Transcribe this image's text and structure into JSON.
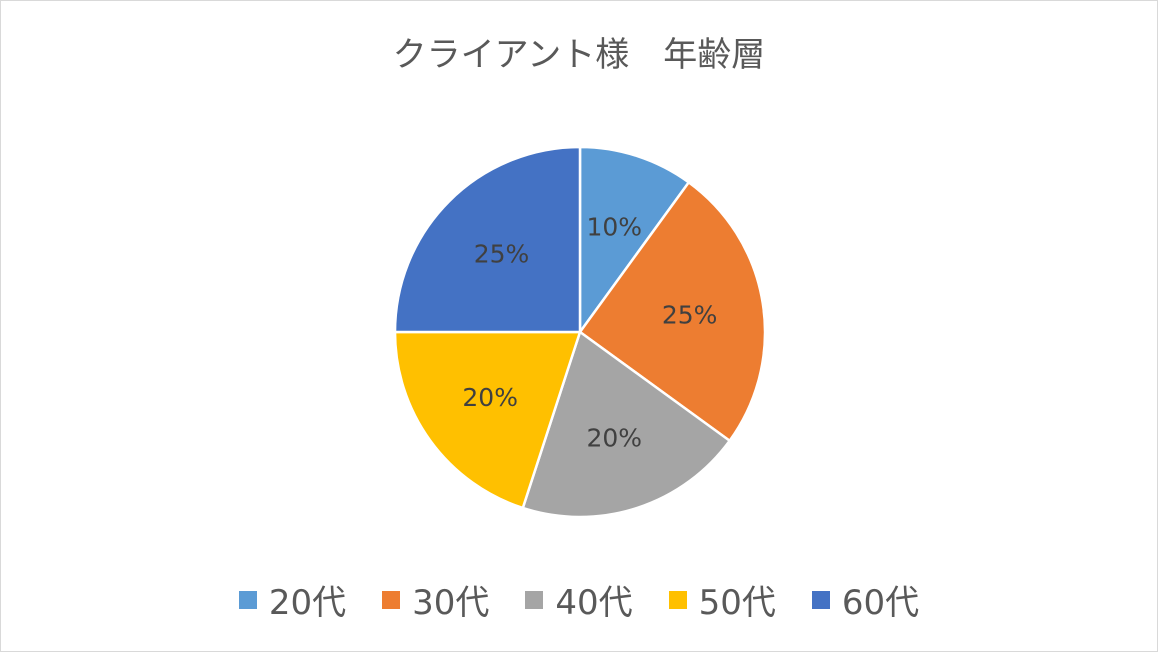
{
  "chart_data": {
    "type": "pie",
    "title": "クライアント様　年齢層",
    "categories": [
      "20代",
      "30代",
      "40代",
      "50代",
      "60代"
    ],
    "values": [
      10,
      25,
      20,
      20,
      25
    ],
    "data_labels": [
      "10%",
      "25%",
      "20%",
      "20%",
      "25%"
    ],
    "colors": [
      "#5b9bd5",
      "#ed7d31",
      "#a5a5a5",
      "#ffc000",
      "#4472c4"
    ],
    "legend_position": "bottom"
  }
}
